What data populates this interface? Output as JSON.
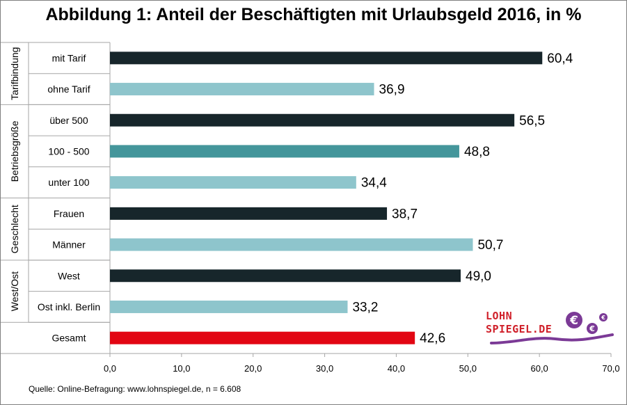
{
  "title": "Abbildung 1: Anteil der Beschäftigten mit Urlaubsgeld 2016, in %",
  "source": "Quelle:  Online-Befragung:  www.lohnspiegel.de, n =  6.608",
  "logo": {
    "line1": "LOHN",
    "line2": "SPIEGEL.DE",
    "color_text": "#d0202a",
    "color_accent": "#7b3a96",
    "icon": "euro-coins-icon"
  },
  "colors": {
    "dark": "#17262b",
    "light": "#8ec5cc",
    "mid": "#44969b",
    "red": "#e20613",
    "gridline": "#bfbfbf"
  },
  "chart_data": {
    "type": "bar",
    "orientation": "horizontal",
    "groups": [
      {
        "name": "Tarifbindung",
        "categories": [
          "mit Tarif",
          "ohne Tarif"
        ]
      },
      {
        "name": "Betriebsgröße",
        "categories": [
          "über 500",
          "100 - 500",
          "unter 100"
        ]
      },
      {
        "name": "Geschlecht",
        "categories": [
          "Frauen",
          "Männer"
        ]
      },
      {
        "name": "West/Ost",
        "categories": [
          "West",
          "Ost inkl. Berlin"
        ]
      },
      {
        "name": "",
        "categories": [
          "Gesamt"
        ]
      }
    ],
    "categories": [
      "mit Tarif",
      "ohne Tarif",
      "über 500",
      "100 - 500",
      "unter 100",
      "Frauen",
      "Männer",
      "West",
      "Ost inkl. Berlin",
      "Gesamt"
    ],
    "values": [
      60.4,
      36.9,
      56.5,
      48.8,
      34.4,
      38.7,
      50.7,
      49.0,
      33.2,
      42.6
    ],
    "value_labels": [
      "60,4",
      "36,9",
      "56,5",
      "48,8",
      "34,4",
      "38,7",
      "50,7",
      "49,0",
      "33,2",
      "42,6"
    ],
    "bar_colors": [
      "dark",
      "light",
      "dark",
      "mid",
      "light",
      "dark",
      "light",
      "dark",
      "light",
      "red"
    ],
    "xlim": [
      0,
      70
    ],
    "xticks": [
      0,
      10,
      20,
      30,
      40,
      50,
      60,
      70
    ],
    "xtick_labels": [
      "0,0",
      "10,0",
      "20,0",
      "30,0",
      "40,0",
      "50,0",
      "60,0",
      "70,0"
    ],
    "grid": false,
    "legend": "none"
  }
}
